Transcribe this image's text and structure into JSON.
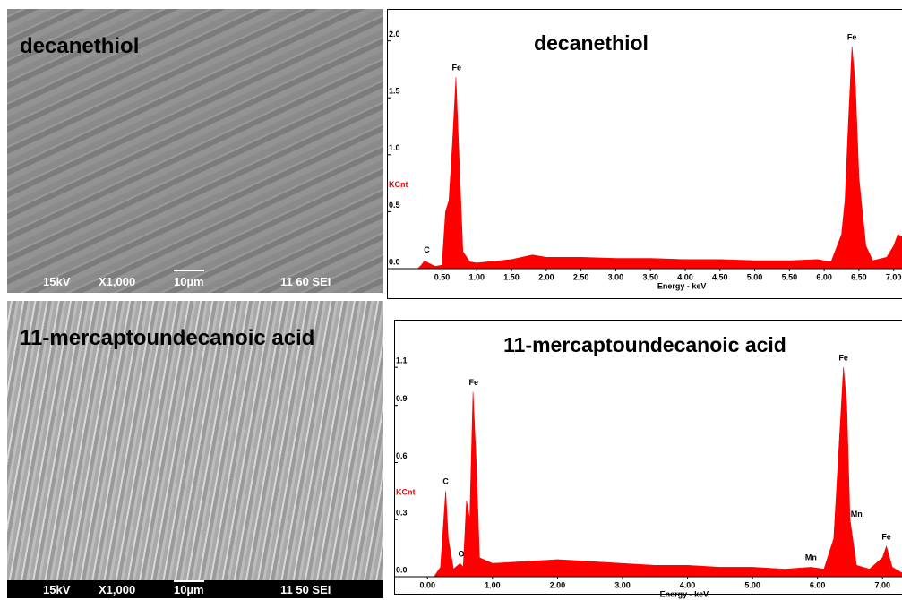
{
  "images": [
    {
      "label": "decanethiol",
      "voltage": "15kV",
      "magnification": "X1,000",
      "scale": "10µm",
      "code": "11 60 SEI"
    },
    {
      "label": "11-mercaptoundecanoic acid",
      "voltage": "15kV",
      "magnification": "X1,000",
      "scale": "10µm",
      "code": "11 50 SEI"
    }
  ],
  "chart_data": [
    {
      "type": "area",
      "title": "decanethiol",
      "color": "#ff0000",
      "y_label": "KCnt",
      "x_label": "Energy - keV",
      "x": [
        0.15,
        0.2,
        0.25,
        0.3,
        0.4,
        0.5,
        0.55,
        0.6,
        0.65,
        0.7,
        0.75,
        0.8,
        0.9,
        1.0,
        1.5,
        1.8,
        2.0,
        2.5,
        3.0,
        3.5,
        4.0,
        4.5,
        5.0,
        5.5,
        5.9,
        6.1,
        6.25,
        6.3,
        6.35,
        6.4,
        6.45,
        6.5,
        6.6,
        6.7,
        6.9,
        7.0,
        7.06,
        7.12
      ],
      "values": [
        0,
        0.03,
        0.07,
        0.05,
        0.02,
        0.03,
        0.5,
        0.6,
        1.1,
        1.68,
        0.9,
        0.15,
        0.06,
        0.05,
        0.08,
        0.12,
        0.1,
        0.1,
        0.09,
        0.09,
        0.08,
        0.08,
        0.07,
        0.07,
        0.08,
        0.06,
        0.3,
        0.6,
        1.3,
        1.95,
        1.6,
        0.8,
        0.2,
        0.07,
        0.1,
        0.2,
        0.3,
        0.28
      ],
      "xlim": [
        -0.28,
        7.12
      ],
      "ylim": [
        0,
        2.28
      ],
      "xticks": [
        {
          "value": 0.5,
          "label": "0.50"
        },
        {
          "value": 1,
          "label": "1.00"
        },
        {
          "value": 1.5,
          "label": "1.50"
        },
        {
          "value": 2,
          "label": "2.00"
        },
        {
          "value": 2.5,
          "label": "2.50"
        },
        {
          "value": 3,
          "label": "3.00"
        },
        {
          "value": 3.5,
          "label": "3.50"
        },
        {
          "value": 4,
          "label": "4.00"
        },
        {
          "value": 4.5,
          "label": "4.50"
        },
        {
          "value": 5,
          "label": "5.00"
        },
        {
          "value": 5.5,
          "label": "5.50"
        },
        {
          "value": 6,
          "label": "6.00"
        },
        {
          "value": 6.5,
          "label": "6.50"
        },
        {
          "value": 7,
          "label": "7.00"
        }
      ],
      "yticks": [
        {
          "value": 0,
          "label": "0.0"
        },
        0.5,
        {
          "value": 1,
          "label": "1.0"
        },
        1.5,
        {
          "value": 2,
          "label": "2.0"
        }
      ],
      "annotations": [
        {
          "text": "C",
          "x": 0.28,
          "y": 0.08
        },
        {
          "text": "Fe",
          "x": 0.71,
          "y": 1.68
        },
        {
          "text": "Fe",
          "x": 6.4,
          "y": 1.95
        }
      ]
    },
    {
      "type": "area",
      "title": "11-mercaptoundecanoic acid",
      "color": "#ff0000",
      "y_label": "KCnt",
      "x_label": "Energy - keV",
      "x": [
        0.1,
        0.2,
        0.25,
        0.28,
        0.32,
        0.4,
        0.5,
        0.55,
        0.6,
        0.65,
        0.7,
        0.75,
        0.8,
        1.0,
        1.5,
        2.0,
        2.5,
        3.0,
        3.5,
        4.0,
        4.5,
        5.0,
        5.5,
        5.9,
        6.1,
        6.25,
        6.3,
        6.35,
        6.4,
        6.45,
        6.5,
        6.6,
        6.8,
        7.0,
        7.06,
        7.15,
        7.3
      ],
      "values": [
        0,
        0.05,
        0.3,
        0.45,
        0.2,
        0.04,
        0.07,
        0.05,
        0.4,
        0.3,
        0.97,
        0.6,
        0.1,
        0.07,
        0.08,
        0.09,
        0.08,
        0.07,
        0.06,
        0.06,
        0.05,
        0.05,
        0.04,
        0.05,
        0.04,
        0.2,
        0.5,
        0.8,
        1.1,
        0.9,
        0.3,
        0.06,
        0.04,
        0.1,
        0.16,
        0.05,
        0.02
      ],
      "xlim": [
        -0.5,
        7.3
      ],
      "ylim": [
        0,
        1.35
      ],
      "xticks": [
        {
          "value": 0,
          "label": "0.00"
        },
        {
          "value": 1,
          "label": "1.00"
        },
        {
          "value": 2,
          "label": "2.00"
        },
        {
          "value": 3,
          "label": "3.00"
        },
        {
          "value": 4,
          "label": "4.00"
        },
        {
          "value": 5,
          "label": "5.00"
        },
        {
          "value": 6,
          "label": "6.00"
        },
        {
          "value": 7,
          "label": "7.00"
        }
      ],
      "yticks": [
        {
          "value": 0,
          "label": "0.0"
        },
        0.3,
        0.6,
        0.9,
        1.1
      ],
      "annotations": [
        {
          "text": "C",
          "x": 0.28,
          "y": 0.45
        },
        {
          "text": "O",
          "x": 0.52,
          "y": 0.07
        },
        {
          "text": "Fe",
          "x": 0.71,
          "y": 0.97
        },
        {
          "text": "Mn",
          "x": 5.9,
          "y": 0.05
        },
        {
          "text": "Fe",
          "x": 6.4,
          "y": 1.1
        },
        {
          "text": "Mn",
          "x": 6.6,
          "y": 0.28
        },
        {
          "text": "Fe",
          "x": 7.06,
          "y": 0.16
        }
      ]
    }
  ]
}
